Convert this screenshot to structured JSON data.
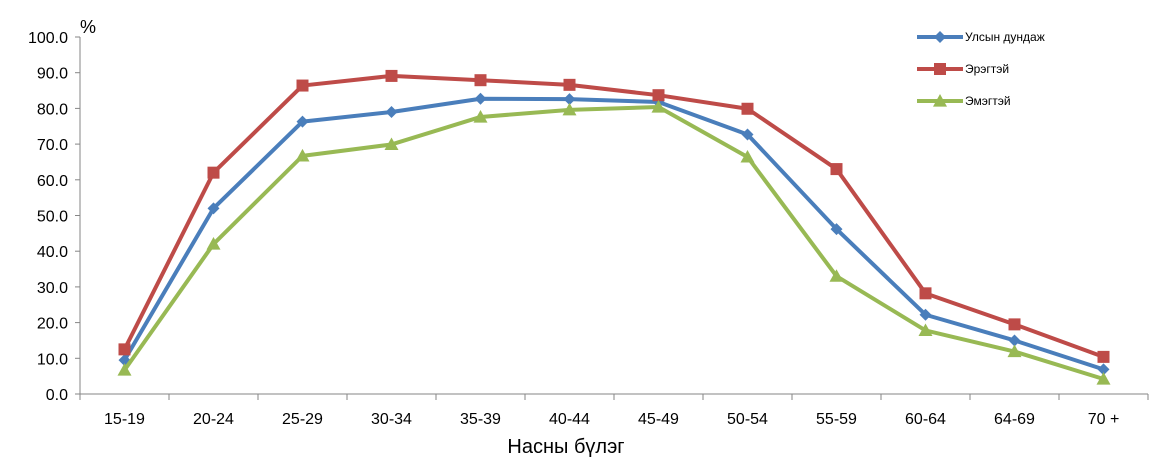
{
  "chart_data": {
    "type": "line",
    "title": "",
    "ylabel": "%",
    "xlabel": "Насны бүлэг",
    "ylim": [
      0,
      100
    ],
    "y_ticks": [
      "0.0",
      "10.0",
      "20.0",
      "30.0",
      "40.0",
      "50.0",
      "60.0",
      "70.0",
      "80.0",
      "90.0",
      "100.0"
    ],
    "categories": [
      "15-19",
      "20-24",
      "25-29",
      "30-34",
      "35-39",
      "40-44",
      "45-49",
      "50-54",
      "55-59",
      "60-64",
      "64-69",
      "70 +"
    ],
    "grid": false,
    "legend_position": "top-right",
    "series": [
      {
        "name": "Улсын дундаж",
        "color": "#4A7EBB",
        "marker": "diamond",
        "values": [
          9.5,
          52.0,
          76.3,
          79.0,
          82.7,
          82.6,
          81.8,
          72.7,
          46.2,
          22.2,
          15.0,
          6.9
        ]
      },
      {
        "name": "Эрэгтэй",
        "color": "#BE4B48",
        "marker": "square",
        "values": [
          12.5,
          62.0,
          86.4,
          89.1,
          87.9,
          86.6,
          83.7,
          79.9,
          63.0,
          28.2,
          19.5,
          10.4
        ]
      },
      {
        "name": "Эмэгтэй",
        "color": "#98B954",
        "marker": "triangle",
        "values": [
          6.7,
          42.0,
          66.7,
          69.9,
          77.6,
          79.6,
          80.4,
          66.4,
          33.0,
          17.8,
          11.9,
          4.2
        ]
      }
    ]
  }
}
